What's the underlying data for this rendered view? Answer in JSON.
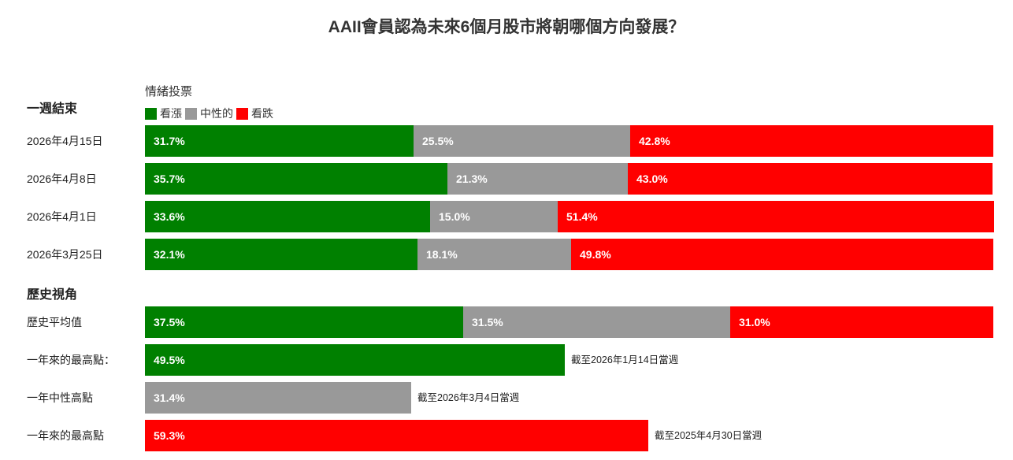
{
  "chart_data": {
    "type": "bar",
    "orientation": "horizontal",
    "stacked": true,
    "title": "AAII會員認為未來6個月股市將朝哪個方向發展？",
    "legend_title": "情緒投票",
    "legend": [
      {
        "name": "看漲",
        "color": "#008000"
      },
      {
        "name": "中性的",
        "color": "#999999"
      },
      {
        "name": "看跌",
        "color": "#ff0000"
      }
    ],
    "sections": [
      {
        "heading": "一週結束",
        "rows": [
          {
            "label": "2026年4月15日",
            "segments": [
              {
                "series": "看漲",
                "value": 31.7,
                "text": "31.7%",
                "color": "#008000"
              },
              {
                "series": "中性的",
                "value": 25.5,
                "text": "25.5%",
                "color": "#999999"
              },
              {
                "series": "看跌",
                "value": 42.8,
                "text": "42.8%",
                "color": "#ff0000"
              }
            ]
          },
          {
            "label": "2026年4月8日",
            "segments": [
              {
                "series": "看漲",
                "value": 35.7,
                "text": "35.7%",
                "color": "#008000"
              },
              {
                "series": "中性的",
                "value": 21.3,
                "text": "21.3%",
                "color": "#999999"
              },
              {
                "series": "看跌",
                "value": 43.0,
                "text": "43.0%",
                "color": "#ff0000"
              }
            ]
          },
          {
            "label": "2026年4月1日",
            "segments": [
              {
                "series": "看漲",
                "value": 33.6,
                "text": "33.6%",
                "color": "#008000"
              },
              {
                "series": "中性的",
                "value": 15.0,
                "text": "15.0%",
                "color": "#999999"
              },
              {
                "series": "看跌",
                "value": 51.4,
                "text": "51.4%",
                "color": "#ff0000"
              }
            ]
          },
          {
            "label": "2026年3月25日",
            "segments": [
              {
                "series": "看漲",
                "value": 32.1,
                "text": "32.1%",
                "color": "#008000"
              },
              {
                "series": "中性的",
                "value": 18.1,
                "text": "18.1%",
                "color": "#999999"
              },
              {
                "series": "看跌",
                "value": 49.8,
                "text": "49.8%",
                "color": "#ff0000"
              }
            ]
          }
        ]
      },
      {
        "heading": "歷史視角",
        "rows": [
          {
            "label": "歷史平均值",
            "segments": [
              {
                "series": "看漲",
                "value": 37.5,
                "text": "37.5%",
                "color": "#008000"
              },
              {
                "series": "中性的",
                "value": 31.5,
                "text": "31.5%",
                "color": "#999999"
              },
              {
                "series": "看跌",
                "value": 31.0,
                "text": "31.0%",
                "color": "#ff0000"
              }
            ]
          },
          {
            "label": "一年來的最高點：",
            "note": "截至2026年1月14日當週",
            "segments": [
              {
                "series": "看漲",
                "value": 49.5,
                "text": "49.5%",
                "color": "#008000"
              }
            ]
          },
          {
            "label": "一年中性高點",
            "note": "截至2026年3月4日當週",
            "segments": [
              {
                "series": "中性的",
                "value": 31.4,
                "text": "31.4%",
                "color": "#999999"
              }
            ]
          },
          {
            "label": "一年來的最高點",
            "note": "截至2025年4月30日當週",
            "segments": [
              {
                "series": "看跌",
                "value": 59.3,
                "text": "59.3%",
                "color": "#ff0000"
              }
            ]
          }
        ]
      }
    ],
    "xlim": [
      0,
      100
    ],
    "grid": false
  }
}
